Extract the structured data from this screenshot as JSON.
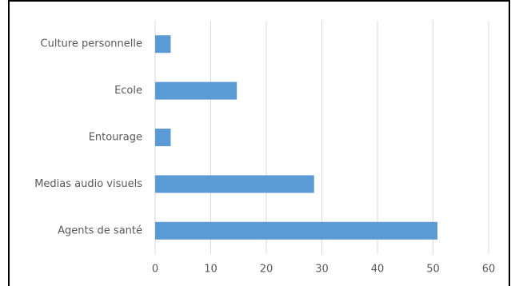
{
  "chart_data": {
    "type": "barh",
    "categories": [
      "Culture personnelle",
      "Ecole",
      "Entourage",
      "Medias audio visuels",
      "Agents de santé"
    ],
    "values": [
      2.8,
      14.7,
      2.8,
      28.6,
      50.8
    ],
    "color": "#5b9bd5",
    "xlim": [
      0,
      60
    ],
    "xticks": [
      0,
      10,
      20,
      30,
      40,
      50,
      60
    ],
    "grid": true
  }
}
